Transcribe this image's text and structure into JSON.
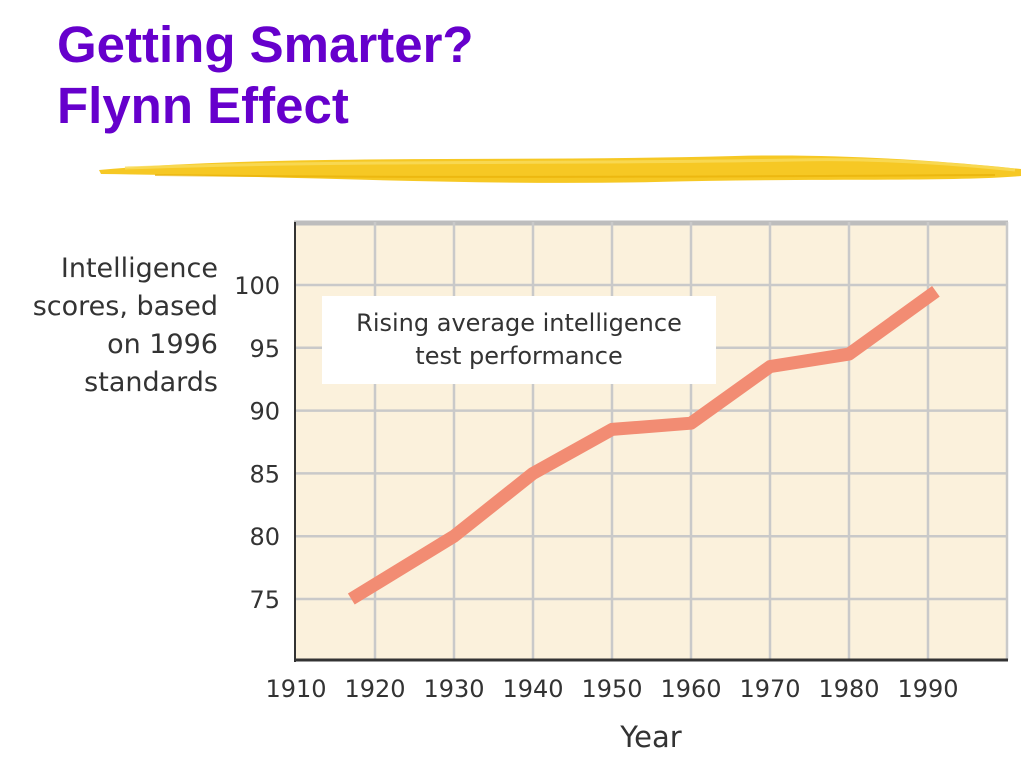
{
  "slide": {
    "title_line1": "Getting Smarter?",
    "title_line2": "Flynn Effect",
    "title_color": "#6600cc",
    "brush_color": "#f5c518"
  },
  "chart_data": {
    "type": "line",
    "title": "",
    "xlabel": "Year",
    "ylabel": "Intelligence\nscores, based\non 1996\nstandards",
    "annotation": "Rising average intelligence\ntest performance",
    "x_ticks": [
      1910,
      1920,
      1930,
      1940,
      1950,
      1960,
      1970,
      1980,
      1990
    ],
    "y_ticks": [
      75,
      80,
      85,
      90,
      95,
      100
    ],
    "xlim": [
      1910,
      2000
    ],
    "ylim": [
      70,
      105
    ],
    "grid": true,
    "plot_background": "#fbf1dc",
    "line_color": "#f28c73",
    "series": [
      {
        "x": [
          1917,
          1930,
          1940,
          1950,
          1960,
          1970,
          1980,
          1991
        ],
        "y": [
          75,
          80,
          85,
          88.5,
          89,
          93.5,
          94.5,
          99.5
        ]
      }
    ]
  }
}
